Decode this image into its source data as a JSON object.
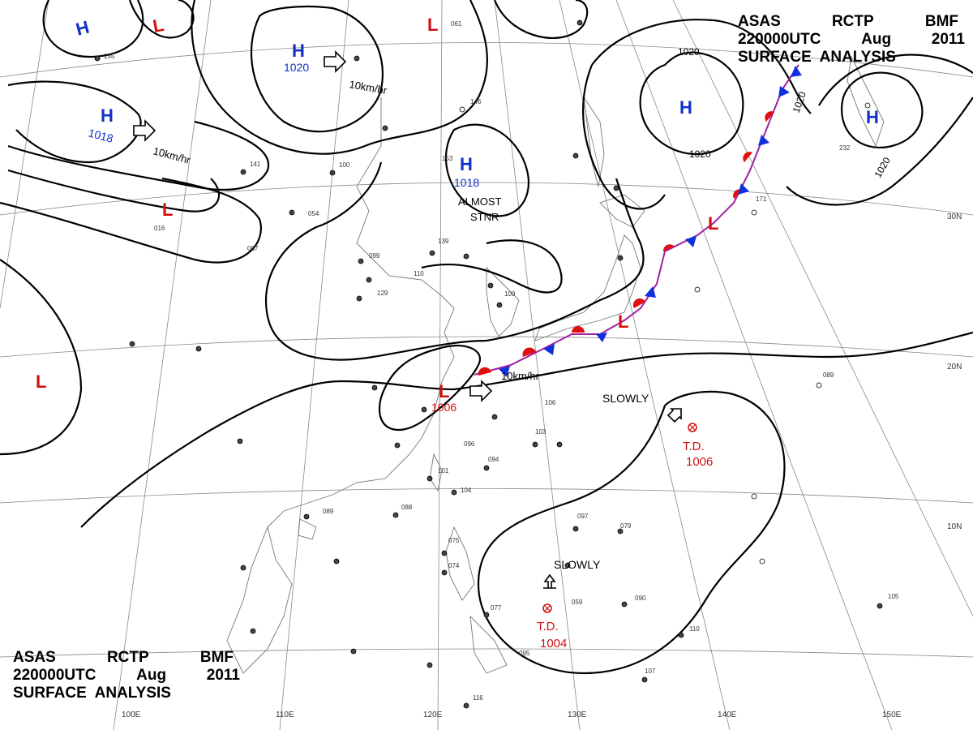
{
  "header": {
    "line1": [
      "ASAS",
      "RCTP",
      "BMF"
    ],
    "line2": [
      "220000UTC",
      "Aug",
      "2011"
    ],
    "line3": "SURFACE  ANALYSIS"
  },
  "colors": {
    "high": "#1030c8",
    "low": "#d01010",
    "front_warm": "#e01010",
    "front_cold": "#1030e0",
    "isobar": "#000000",
    "grid": "#888888"
  },
  "pressure_centers": [
    {
      "type": "H",
      "pressure": ""
    },
    {
      "type": "H",
      "pressure": "1020"
    },
    {
      "type": "H",
      "pressure": "1018"
    },
    {
      "type": "H",
      "pressure": "1018"
    },
    {
      "type": "H",
      "pressure": ""
    },
    {
      "type": "H",
      "pressure": ""
    },
    {
      "type": "L",
      "pressure": ""
    },
    {
      "type": "L",
      "pressure": ""
    },
    {
      "type": "L",
      "pressure": ""
    },
    {
      "type": "L",
      "pressure": ""
    },
    {
      "type": "L",
      "pressure": "1006"
    },
    {
      "type": "L",
      "pressure": ""
    },
    {
      "type": "L",
      "pressure": ""
    }
  ],
  "tropical_depressions": [
    {
      "label": "T.D.",
      "pressure": "1006",
      "motion": "SLOWLY"
    },
    {
      "label": "T.D.",
      "pressure": "1004",
      "motion": "SLOWLY"
    }
  ],
  "motion_labels": [
    "10km/hr",
    "10km/hr",
    "10km/hr",
    "ALMOST",
    "STNR"
  ],
  "isobar_labels": [
    "1020",
    "1020",
    "1020",
    "1020"
  ],
  "longitude_labels": [
    "100E",
    "110E",
    "120E",
    "130E",
    "140E",
    "150E"
  ],
  "latitude_labels": [
    "30N",
    "20N",
    "10N"
  ],
  "station_samples": [
    "155",
    "141",
    "100",
    "054",
    "067",
    "016",
    "139",
    "110",
    "099",
    "129",
    "146",
    "153",
    "109",
    "096",
    "094",
    "101",
    "104",
    "088",
    "089",
    "106",
    "103",
    "097",
    "079",
    "090",
    "075",
    "074",
    "077",
    "059",
    "095",
    "116",
    "110",
    "107",
    "105",
    "089",
    "232",
    "171",
    "061"
  ]
}
